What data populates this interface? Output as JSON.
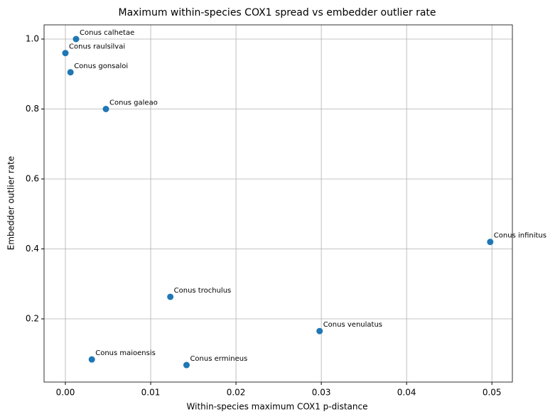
{
  "chart_data": {
    "type": "scatter",
    "title": "Maximum within-species COX1 spread vs embedder outlier rate",
    "x_label": "Within-species maximum COX1 p-distance",
    "y_label": "Embedder outlier rate",
    "labels": [
      "Conus calhetae",
      "Conus raulsilvai",
      "Conus gonsaloi",
      "Conus galeao",
      "Conus infinitus",
      "Conus trochulus",
      "Conus venulatus",
      "Conus maioensis",
      "Conus ermineus"
    ],
    "x": [
      0.00125,
      0.0,
      0.0006,
      0.00475,
      0.0498,
      0.0123,
      0.0298,
      0.0031,
      0.0142
    ],
    "values": [
      1.0,
      0.96,
      0.905,
      0.8,
      0.42,
      0.263,
      0.165,
      0.084,
      0.068
    ],
    "color": "#1f77b4",
    "xlim": [
      -0.0025,
      0.0524
    ],
    "ylim": [
      0.0193,
      1.0406
    ],
    "xticks": [
      {
        "value": 0,
        "label": "0.00"
      },
      0.01,
      0.02,
      0.03,
      0.04,
      0.05
    ],
    "yticks": [
      0.2,
      0.4,
      0.6,
      0.8,
      {
        "value": 1,
        "label": "1.0"
      }
    ],
    "grid": true
  }
}
